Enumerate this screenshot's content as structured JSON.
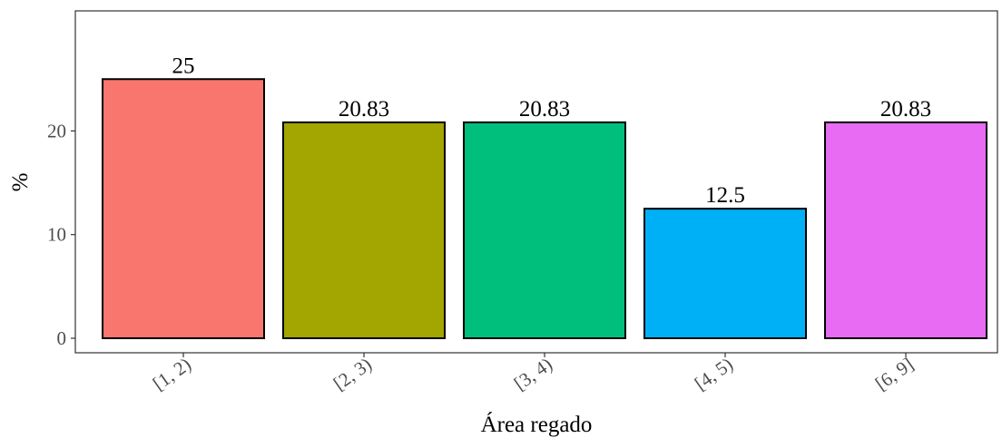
{
  "chart_data": {
    "type": "bar",
    "title": "",
    "xlabel": "Área regado",
    "ylabel": "%",
    "categories": [
      "[1, 2)",
      "[2, 3)",
      "[3, 4)",
      "[4, 5)",
      "[6, 9]"
    ],
    "values": [
      25,
      20.83,
      20.83,
      12.5,
      20.83
    ],
    "data_labels": [
      "25",
      "20.83",
      "20.83",
      "12.5",
      "20.83"
    ],
    "colors": [
      "#F8766D",
      "#A3A500",
      "#00BF7D",
      "#00B0F6",
      "#E76BF3"
    ],
    "ylim": [
      0,
      30
    ],
    "yticks": [
      0,
      10,
      20
    ],
    "grid": false,
    "legend": "none"
  }
}
